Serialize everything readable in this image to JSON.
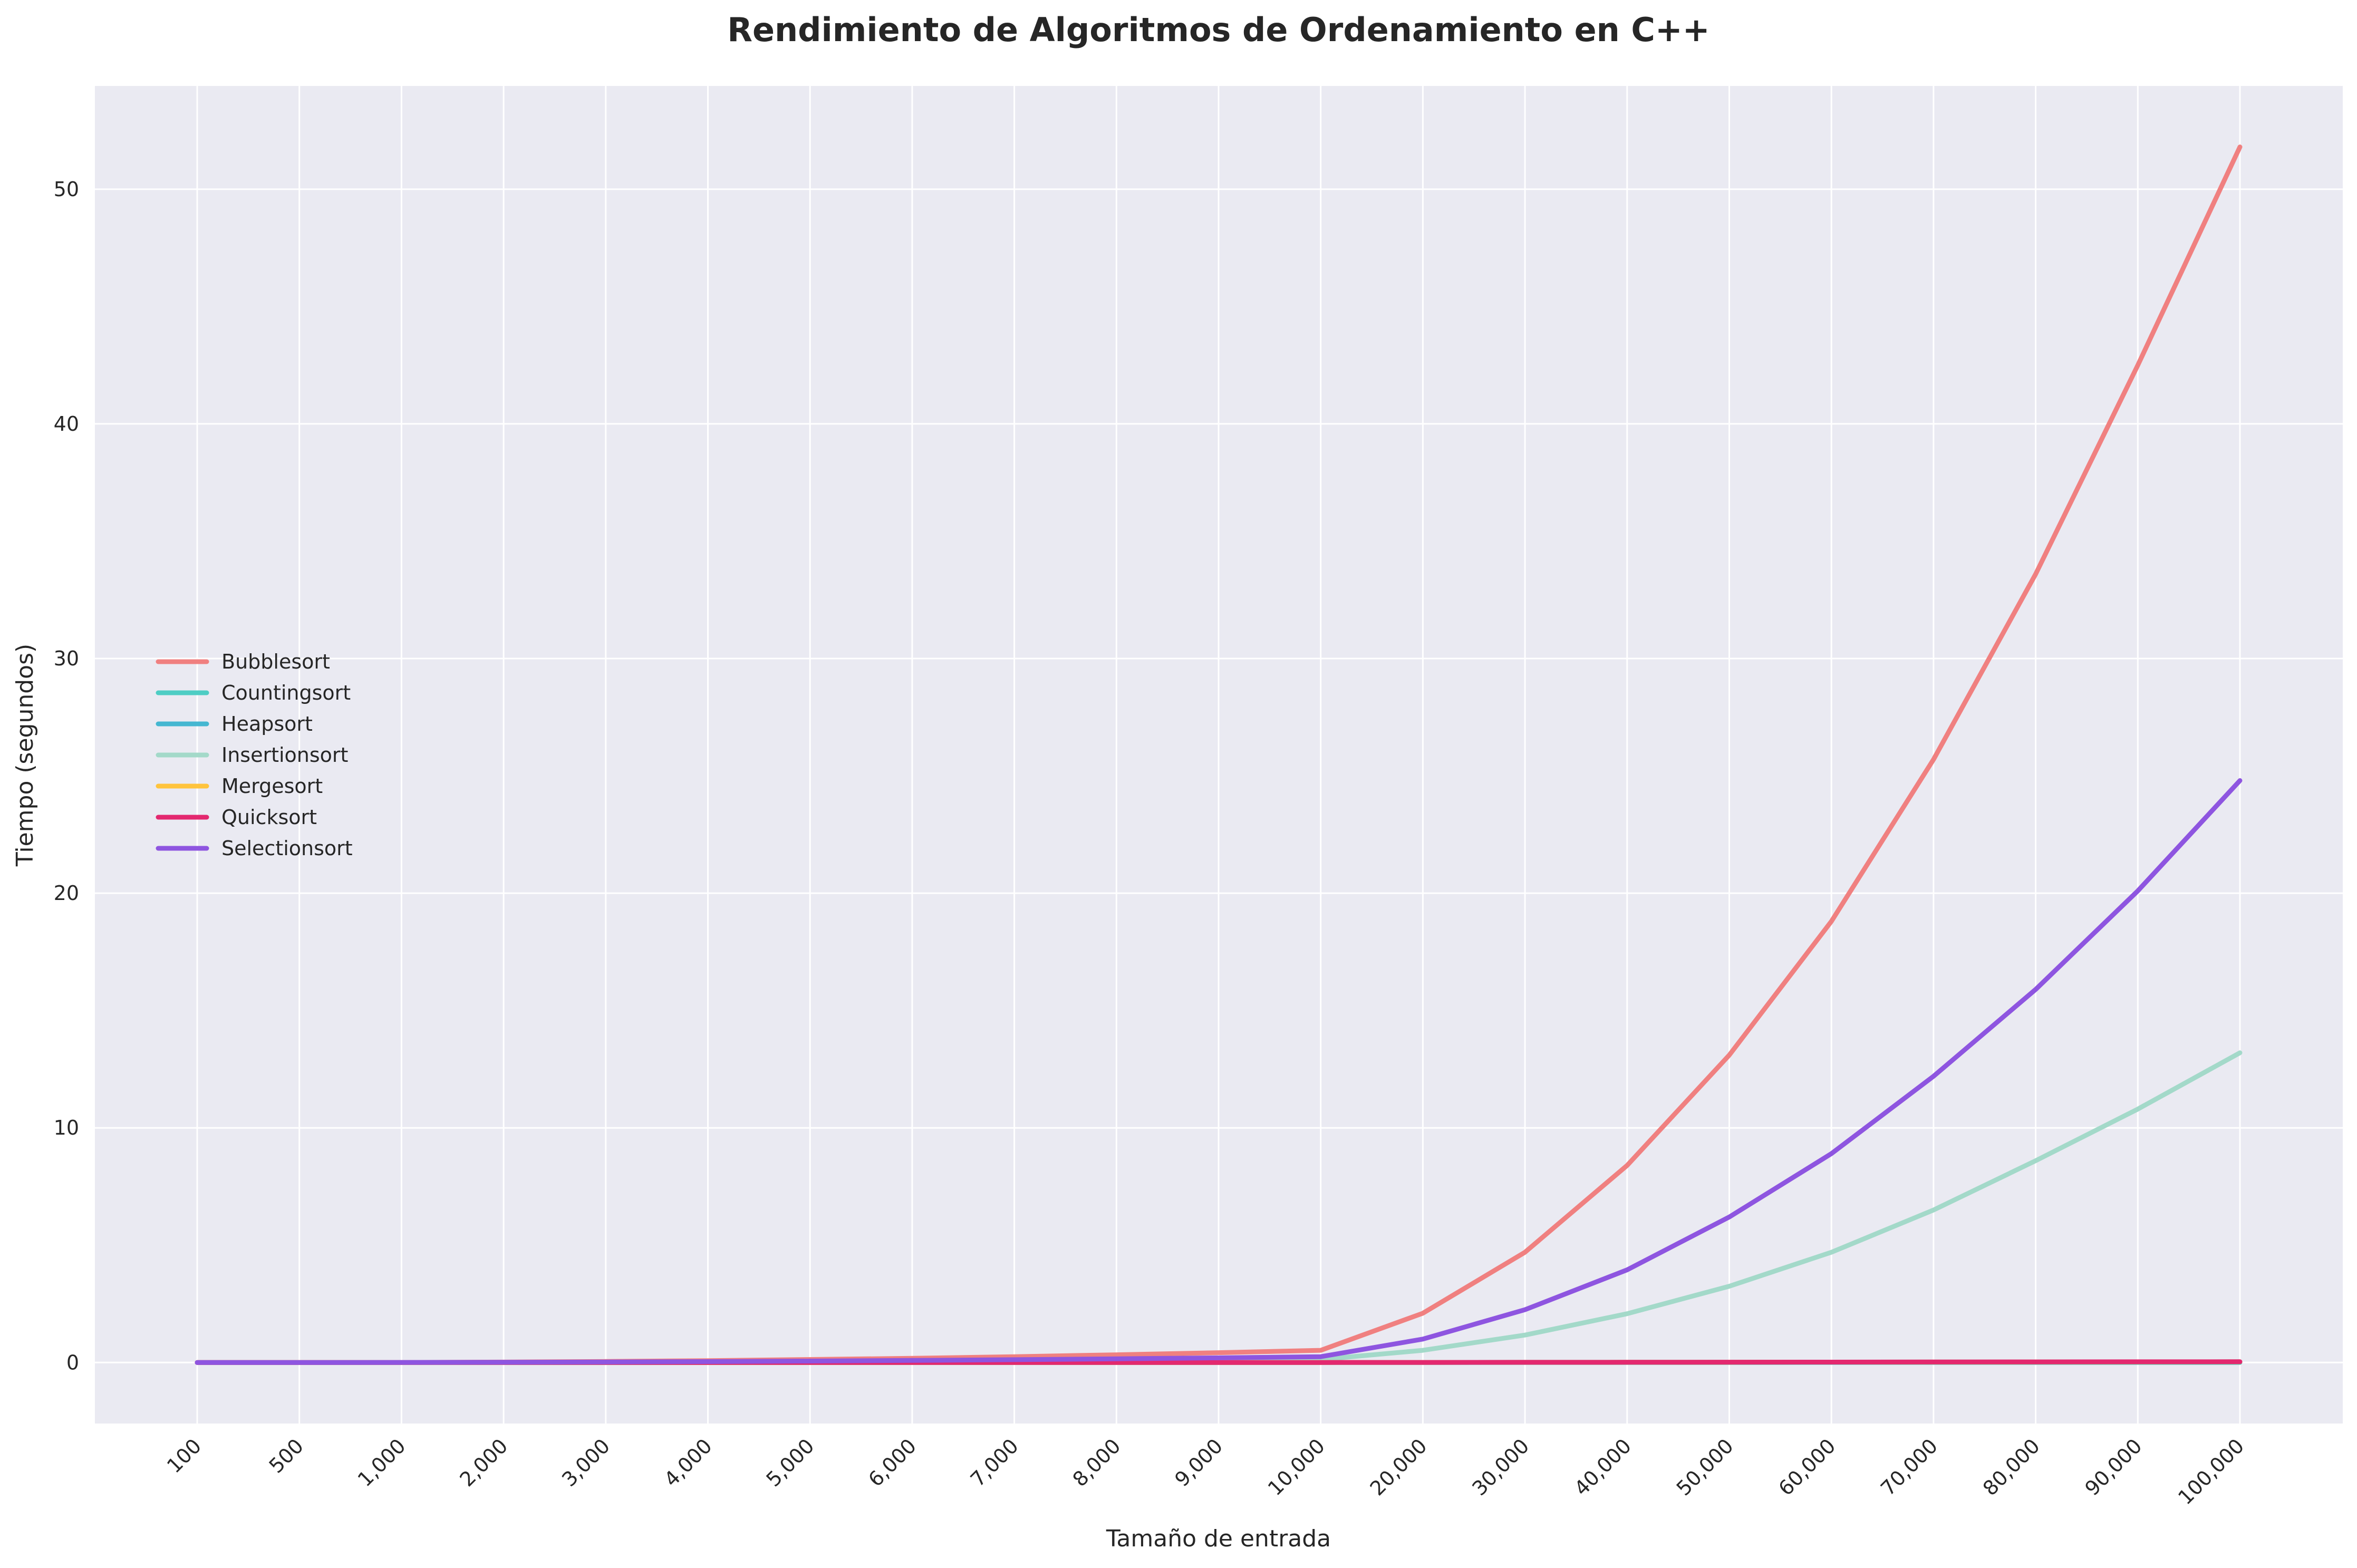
{
  "chart_data": {
    "type": "line",
    "title": "Rendimiento de Algoritmos de Ordenamiento en C++",
    "xlabel": "Tamaño de entrada",
    "ylabel": "Tiempo (segundos)",
    "categories": [
      "100",
      "500",
      "1,000",
      "2,000",
      "3,000",
      "4,000",
      "5,000",
      "6,000",
      "7,000",
      "8,000",
      "9,000",
      "10,000",
      "20,000",
      "30,000",
      "40,000",
      "50,000",
      "60,000",
      "70,000",
      "80,000",
      "90,000",
      "100,000"
    ],
    "yticks": [
      0,
      10,
      20,
      30,
      40,
      50
    ],
    "ylim": [
      -2.6,
      54.4
    ],
    "grid": true,
    "legend_position": "center-left",
    "series": [
      {
        "name": "Bubblesort",
        "color": "#F08080",
        "values": [
          0,
          0,
          0.005,
          0.02,
          0.045,
          0.08,
          0.13,
          0.18,
          0.25,
          0.33,
          0.42,
          0.52,
          2.1,
          4.7,
          8.4,
          13.1,
          18.8,
          25.7,
          33.6,
          42.5,
          51.8
        ]
      },
      {
        "name": "Countingsort",
        "color": "#4ECDC4",
        "values": [
          0,
          0,
          0,
          0,
          0,
          0,
          0,
          0,
          0,
          0,
          0,
          0,
          0.001,
          0.001,
          0.002,
          0.002,
          0.003,
          0.003,
          0.004,
          0.004,
          0.005
        ]
      },
      {
        "name": "Heapsort",
        "color": "#45B7D1",
        "values": [
          0,
          0,
          0,
          0,
          0.001,
          0.001,
          0.001,
          0.001,
          0.001,
          0.002,
          0.002,
          0.002,
          0.005,
          0.008,
          0.011,
          0.014,
          0.017,
          0.02,
          0.023,
          0.026,
          0.03
        ]
      },
      {
        "name": "Insertionsort",
        "color": "#A3D9C9",
        "values": [
          0,
          0,
          0.001,
          0.005,
          0.012,
          0.02,
          0.03,
          0.045,
          0.06,
          0.08,
          0.1,
          0.13,
          0.52,
          1.17,
          2.08,
          3.25,
          4.7,
          6.5,
          8.6,
          10.8,
          13.2
        ]
      },
      {
        "name": "Mergesort",
        "color": "#FFC43D",
        "values": [
          0,
          0,
          0,
          0,
          0.001,
          0.001,
          0.001,
          0.001,
          0.002,
          0.002,
          0.002,
          0.002,
          0.005,
          0.008,
          0.011,
          0.014,
          0.017,
          0.02,
          0.023,
          0.027,
          0.03
        ]
      },
      {
        "name": "Quicksort",
        "color": "#E3286F",
        "values": [
          0,
          0,
          0,
          0,
          0.001,
          0.001,
          0.001,
          0.001,
          0.001,
          0.002,
          0.002,
          0.002,
          0.005,
          0.008,
          0.011,
          0.015,
          0.018,
          0.022,
          0.026,
          0.03,
          0.034
        ]
      },
      {
        "name": "Selectionsort",
        "color": "#8E55E0",
        "values": [
          0,
          0,
          0.003,
          0.01,
          0.022,
          0.04,
          0.062,
          0.09,
          0.12,
          0.16,
          0.2,
          0.25,
          1.0,
          2.25,
          3.95,
          6.2,
          8.9,
          12.2,
          15.9,
          20.1,
          24.8
        ]
      }
    ]
  }
}
